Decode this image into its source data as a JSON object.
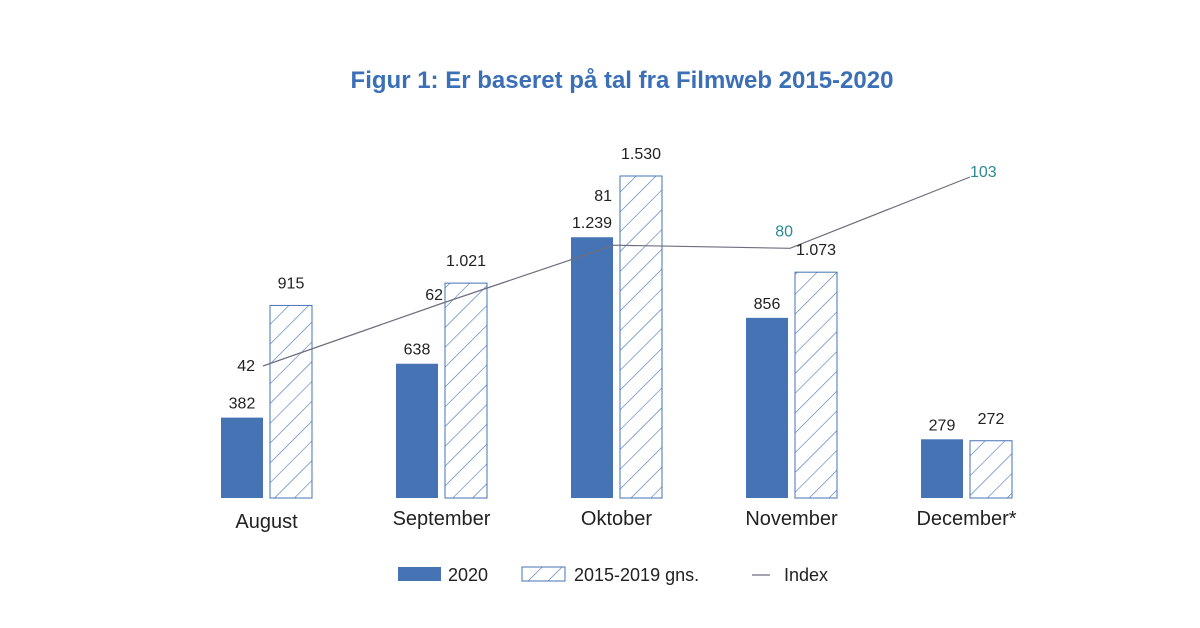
{
  "chart_data": {
    "type": "bar",
    "title": "Figur 1: Er baseret på tal fra Filmweb 2015-2020",
    "categories": [
      "August",
      "September",
      "Oktober",
      "November",
      "December*"
    ],
    "series": [
      {
        "name": "2020",
        "values": [
          382,
          638,
          1239,
          856,
          279
        ],
        "labels": [
          "382",
          "638",
          "1.239",
          "856",
          "279"
        ]
      },
      {
        "name": "2015-2019 gns.",
        "values": [
          915,
          1021,
          1530,
          1073,
          272
        ],
        "labels": [
          "915",
          "1.021",
          "1.530",
          "1.073",
          "272"
        ]
      }
    ],
    "line": {
      "name": "Index",
      "values": [
        42,
        62,
        81,
        80,
        103
      ],
      "labels": [
        "42",
        "62",
        "81",
        "80",
        "103"
      ]
    },
    "ylim": [
      0,
      1530
    ],
    "index_ylim": [
      30,
      120
    ],
    "colors": {
      "title": "#3B6FB6",
      "bar_2020": "#4573B4",
      "bar_avg_stroke": "#4573B4",
      "line": "#6E6E80",
      "index_label_highlight": "#2B8A92",
      "text": "#222222"
    }
  }
}
